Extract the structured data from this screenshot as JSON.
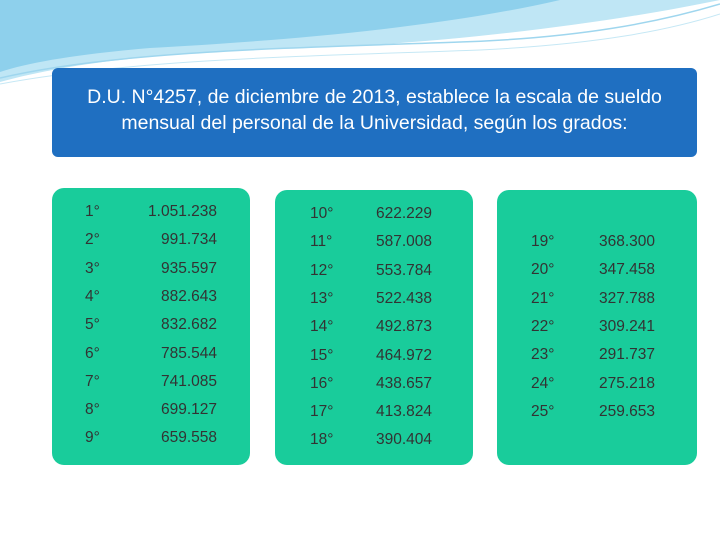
{
  "header": {
    "title": "D.U. N°4257, de diciembre de 2013, establece la escala de sueldo mensual del personal de la Universidad, según los grados:"
  },
  "panels": [
    {
      "rows": [
        [
          "1°",
          "1.051.238"
        ],
        [
          "2°",
          "991.734"
        ],
        [
          "3°",
          "935.597"
        ],
        [
          "4°",
          "882.643"
        ],
        [
          "5°",
          "832.682"
        ],
        [
          "6°",
          "785.544"
        ],
        [
          "7°",
          "741.085"
        ],
        [
          "8°",
          "699.127"
        ],
        [
          "9°",
          "659.558"
        ]
      ]
    },
    {
      "rows": [
        [
          "10°",
          "622.229"
        ],
        [
          "11°",
          "587.008"
        ],
        [
          "12°",
          "553.784"
        ],
        [
          "13°",
          "522.438"
        ],
        [
          "14°",
          "492.873"
        ],
        [
          "15°",
          "464.972"
        ],
        [
          "16°",
          "438.657"
        ],
        [
          "17°",
          "413.824"
        ],
        [
          "18°",
          "390.404"
        ]
      ]
    },
    {
      "rows": [
        [
          "19°",
          "368.300"
        ],
        [
          "20°",
          "347.458"
        ],
        [
          "21°",
          "327.788"
        ],
        [
          "22°",
          "309.241"
        ],
        [
          "23°",
          "291.737"
        ],
        [
          "24°",
          "275.218"
        ],
        [
          "25°",
          "259.653"
        ]
      ]
    }
  ]
}
